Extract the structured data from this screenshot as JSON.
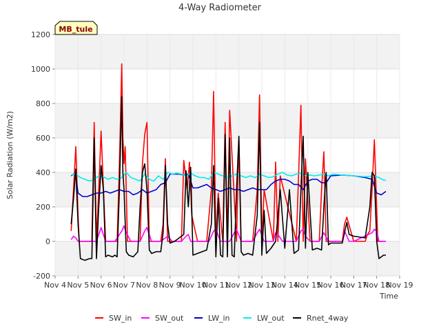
{
  "chart_data": {
    "type": "line",
    "title": "4-Way Radiometer",
    "xlabel": "Time",
    "ylabel": "Solar Radiation (W/m2)",
    "badge": "MB_tule",
    "xlim": [
      4,
      19
    ],
    "ylim": [
      -200,
      1200
    ],
    "x_ticks": [
      4,
      5,
      6,
      7,
      8,
      9,
      10,
      11,
      12,
      13,
      14,
      15,
      16,
      17,
      18,
      19
    ],
    "x_tick_labels": [
      "Nov 4",
      "Nov 5",
      "Nov 6",
      "Nov 7",
      "Nov 8",
      "Nov 9",
      "Nov 10",
      "Nov 11",
      "Nov 12",
      "Nov 13",
      "Nov 14",
      "Nov 15",
      "Nov 16",
      "Nov 17",
      "Nov 18",
      "Nov 19"
    ],
    "y_ticks": [
      -200,
      0,
      200,
      400,
      600,
      800,
      1000,
      1200
    ],
    "y_tick_labels": [
      "-200",
      "0",
      "200",
      "400",
      "600",
      "800",
      "1000",
      "1200"
    ],
    "colors": {
      "SW_in": "#ff0000",
      "SW_out": "#ff00ff",
      "LW_in": "#0000cc",
      "LW_out": "#00eeee",
      "Rnet_4way": "#000000"
    },
    "series": [
      {
        "name": "SW_in",
        "x": [
          4.7,
          4.8,
          4.9,
          5.0,
          5.05,
          5.1,
          5.6,
          5.7,
          5.8,
          5.9,
          6.0,
          6.2,
          6.5,
          6.7,
          6.8,
          6.9,
          6.95,
          7.0,
          7.05,
          7.15,
          7.4,
          7.7,
          7.8,
          7.9,
          8.0,
          8.1,
          8.2,
          8.6,
          8.7,
          8.8,
          8.9,
          9.0,
          9.1,
          9.5,
          9.6,
          9.75,
          9.85,
          9.95,
          10.2,
          10.6,
          10.8,
          10.9,
          11.0,
          11.1,
          11.3,
          11.4,
          11.5,
          11.6,
          11.9,
          12.0,
          12.1,
          12.2,
          12.3,
          12.6,
          12.8,
          12.9,
          13.0,
          13.1,
          13.5,
          13.6,
          13.7,
          13.8,
          14.5,
          14.6,
          14.7,
          14.8,
          14.9,
          15.1,
          15.5,
          15.6,
          15.7,
          15.8,
          16.0,
          16.5,
          16.6,
          16.7,
          17.0,
          17.5,
          17.6,
          17.7,
          17.8,
          17.9,
          18.05,
          18.4
        ],
        "y": [
          60,
          300,
          550,
          150,
          0,
          0,
          0,
          690,
          0,
          300,
          640,
          0,
          0,
          0,
          450,
          1030,
          600,
          450,
          550,
          0,
          0,
          0,
          450,
          620,
          690,
          0,
          0,
          0,
          100,
          480,
          0,
          0,
          0,
          0,
          470,
          300,
          460,
          150,
          0,
          0,
          300,
          870,
          0,
          280,
          0,
          690,
          0,
          760,
          0,
          600,
          0,
          0,
          0,
          0,
          300,
          850,
          0,
          300,
          0,
          460,
          0,
          380,
          0,
          380,
          790,
          0,
          480,
          0,
          0,
          300,
          520,
          0,
          0,
          0,
          100,
          140,
          0,
          0,
          40,
          60,
          300,
          590,
          0,
          0
        ]
      },
      {
        "name": "SW_out",
        "x": [
          4.7,
          4.8,
          4.9,
          5.0,
          5.1,
          5.5,
          5.8,
          6.0,
          6.2,
          6.6,
          6.9,
          7.0,
          7.1,
          7.3,
          7.7,
          7.9,
          8.0,
          8.2,
          8.6,
          8.8,
          8.9,
          9.1,
          9.5,
          9.7,
          9.8,
          9.9,
          10.3,
          10.7,
          10.9,
          11.0,
          11.2,
          11.6,
          11.8,
          11.9,
          12.1,
          12.6,
          12.8,
          12.9,
          13.1,
          13.5,
          13.6,
          13.7,
          13.9,
          14.5,
          14.7,
          14.8,
          14.9,
          15.1,
          15.5,
          15.7,
          15.9,
          16.5,
          16.6,
          16.8,
          17.0,
          17.8,
          17.9,
          18.0,
          18.1,
          18.4
        ],
        "y": [
          10,
          30,
          20,
          0,
          0,
          0,
          0,
          80,
          0,
          0,
          60,
          90,
          50,
          0,
          0,
          60,
          80,
          0,
          0,
          20,
          30,
          0,
          0,
          30,
          40,
          0,
          0,
          0,
          60,
          70,
          0,
          0,
          50,
          70,
          0,
          0,
          50,
          70,
          0,
          0,
          50,
          40,
          0,
          0,
          60,
          70,
          30,
          0,
          0,
          50,
          0,
          0,
          60,
          0,
          0,
          50,
          70,
          60,
          0,
          0
        ]
      },
      {
        "name": "LW_in",
        "x": [
          4.7,
          4.8,
          4.9,
          5.0,
          5.2,
          5.4,
          5.6,
          5.8,
          6.0,
          6.2,
          6.4,
          6.6,
          6.8,
          7.0,
          7.2,
          7.4,
          7.6,
          7.8,
          8.0,
          8.2,
          8.4,
          8.6,
          8.8,
          9.0,
          9.2,
          9.4,
          9.6,
          9.8,
          10.0,
          10.2,
          10.4,
          10.6,
          10.8,
          11.0,
          11.2,
          11.4,
          11.6,
          11.8,
          12.0,
          12.2,
          12.4,
          12.6,
          12.8,
          13.0,
          13.2,
          13.4,
          13.6,
          13.8,
          14.0,
          14.2,
          14.4,
          14.6,
          14.8,
          15.0,
          15.2,
          15.4,
          15.6,
          15.8,
          16.0,
          16.5,
          17.0,
          17.5,
          17.8,
          18.0,
          18.2,
          18.4
        ],
        "y": [
          380,
          390,
          380,
          280,
          260,
          260,
          270,
          280,
          280,
          290,
          280,
          290,
          300,
          290,
          290,
          270,
          280,
          300,
          280,
          290,
          300,
          330,
          340,
          390,
          390,
          390,
          385,
          390,
          310,
          310,
          320,
          330,
          310,
          300,
          290,
          300,
          310,
          300,
          300,
          290,
          300,
          310,
          300,
          300,
          300,
          330,
          350,
          360,
          360,
          350,
          330,
          330,
          300,
          350,
          360,
          360,
          340,
          340,
          380,
          385,
          380,
          370,
          360,
          280,
          270,
          290
        ]
      },
      {
        "name": "LW_out",
        "x": [
          4.7,
          4.9,
          5.1,
          5.3,
          5.5,
          5.7,
          5.9,
          6.1,
          6.3,
          6.5,
          6.7,
          6.9,
          7.1,
          7.3,
          7.5,
          7.7,
          7.9,
          8.1,
          8.3,
          8.5,
          8.7,
          8.9,
          9.1,
          9.3,
          9.5,
          9.7,
          9.9,
          10.1,
          10.3,
          10.5,
          10.7,
          10.9,
          11.1,
          11.3,
          11.5,
          11.7,
          11.9,
          12.1,
          12.3,
          12.5,
          12.7,
          12.9,
          13.1,
          13.3,
          13.5,
          13.7,
          13.9,
          14.1,
          14.3,
          14.5,
          14.7,
          14.9,
          15.1,
          15.3,
          15.5,
          15.7,
          15.9,
          16.1,
          16.5,
          17.0,
          17.5,
          17.9,
          18.1,
          18.3,
          18.4
        ],
        "y": [
          385,
          390,
          370,
          360,
          350,
          360,
          380,
          375,
          360,
          370,
          360,
          370,
          400,
          370,
          360,
          350,
          390,
          360,
          350,
          380,
          360,
          400,
          390,
          395,
          390,
          380,
          395,
          380,
          370,
          370,
          360,
          400,
          390,
          380,
          370,
          380,
          390,
          380,
          370,
          380,
          370,
          390,
          380,
          370,
          375,
          390,
          400,
          385,
          380,
          390,
          395,
          380,
          385,
          380,
          385,
          390,
          380,
          390,
          385,
          380,
          375,
          380,
          370,
          355,
          355
        ]
      },
      {
        "name": "Rnet_4way",
        "x": [
          4.7,
          4.8,
          4.9,
          5.0,
          5.1,
          5.3,
          5.5,
          5.6,
          5.7,
          5.8,
          5.9,
          6.0,
          6.1,
          6.2,
          6.3,
          6.5,
          6.6,
          6.7,
          6.8,
          6.9,
          6.95,
          7.0,
          7.1,
          7.2,
          7.4,
          7.6,
          7.7,
          7.8,
          7.9,
          8.0,
          8.1,
          8.2,
          8.4,
          8.6,
          8.7,
          8.8,
          8.9,
          9.0,
          9.2,
          9.4,
          9.6,
          9.7,
          9.8,
          9.9,
          10.0,
          10.2,
          10.4,
          10.6,
          10.8,
          10.9,
          11.0,
          11.1,
          11.2,
          11.3,
          11.4,
          11.5,
          11.6,
          11.7,
          11.8,
          11.9,
          12.0,
          12.1,
          12.2,
          12.4,
          12.6,
          12.8,
          12.9,
          13.0,
          13.1,
          13.2,
          13.4,
          13.6,
          13.8,
          14.0,
          14.2,
          14.4,
          14.6,
          14.7,
          14.8,
          14.9,
          15.0,
          15.2,
          15.4,
          15.6,
          15.7,
          15.8,
          15.9,
          16.0,
          16.5,
          16.6,
          16.7,
          16.8,
          17.0,
          17.5,
          17.7,
          17.8,
          17.9,
          18.0,
          18.1,
          18.2,
          18.3,
          18.4
        ],
        "y": [
          100,
          250,
          420,
          100,
          -100,
          -110,
          -100,
          -100,
          600,
          -100,
          200,
          440,
          300,
          -90,
          -80,
          -90,
          -80,
          -90,
          300,
          840,
          400,
          300,
          -60,
          -80,
          -90,
          -60,
          200,
          400,
          450,
          300,
          -50,
          -70,
          -60,
          -60,
          50,
          440,
          100,
          -10,
          0,
          20,
          40,
          410,
          200,
          430,
          -80,
          -70,
          -60,
          -50,
          100,
          440,
          -90,
          250,
          -80,
          -90,
          620,
          -90,
          600,
          -80,
          -90,
          300,
          610,
          -60,
          -80,
          -70,
          -80,
          150,
          690,
          -80,
          180,
          -70,
          -40,
          0,
          300,
          -40,
          300,
          -70,
          -50,
          300,
          610,
          -40,
          400,
          -50,
          -40,
          -50,
          200,
          400,
          -20,
          -10,
          -10,
          50,
          110,
          40,
          30,
          20,
          200,
          400,
          380,
          0,
          -100,
          -90,
          -80,
          -80
        ]
      }
    ]
  }
}
